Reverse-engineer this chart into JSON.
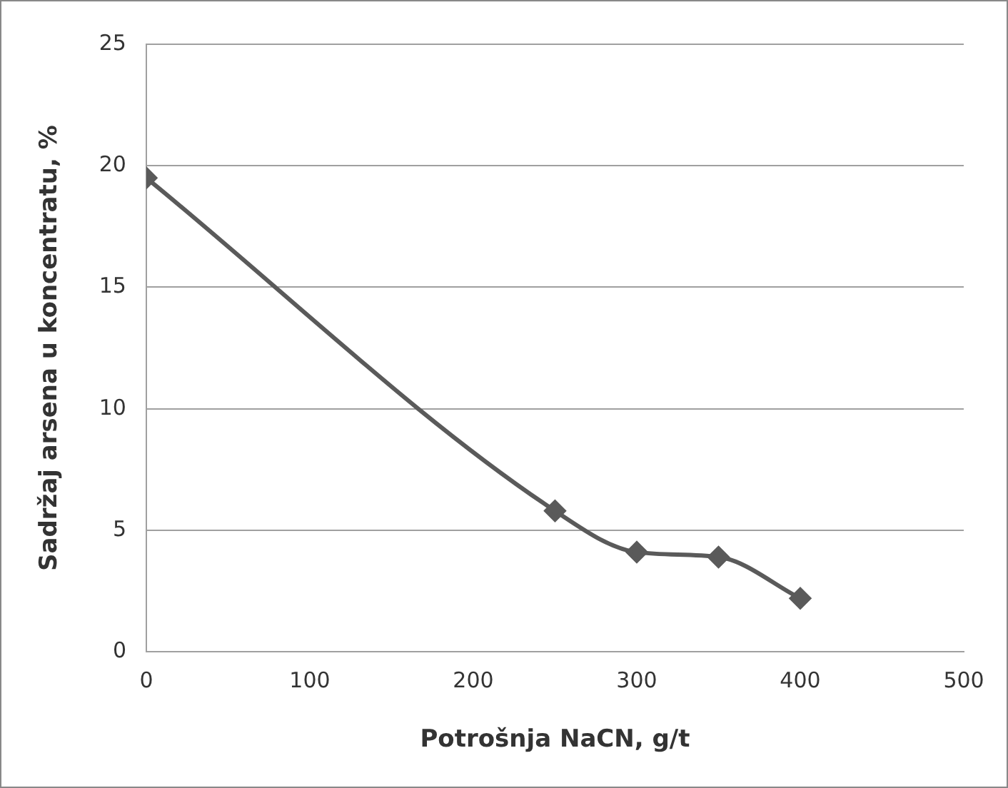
{
  "chart_data": {
    "type": "line",
    "xlabel": "Potrošnja NaCN, g/t",
    "ylabel": "Sadržaj arsena u koncentratu, %",
    "x": [
      0,
      250,
      300,
      350,
      400
    ],
    "series": [
      {
        "color": "#5a5a5a",
        "values": [
          19.5,
          5.8,
          4.1,
          3.9,
          2.2
        ]
      }
    ],
    "xlim": [
      0,
      500
    ],
    "xticks": [
      0,
      100,
      200,
      300,
      400,
      500
    ],
    "ylim": [
      0,
      25
    ],
    "yticks": [
      0,
      5,
      10,
      15,
      20,
      25
    ],
    "grid": "y",
    "legend": false,
    "marker": "diamond",
    "line_style": "solid"
  }
}
